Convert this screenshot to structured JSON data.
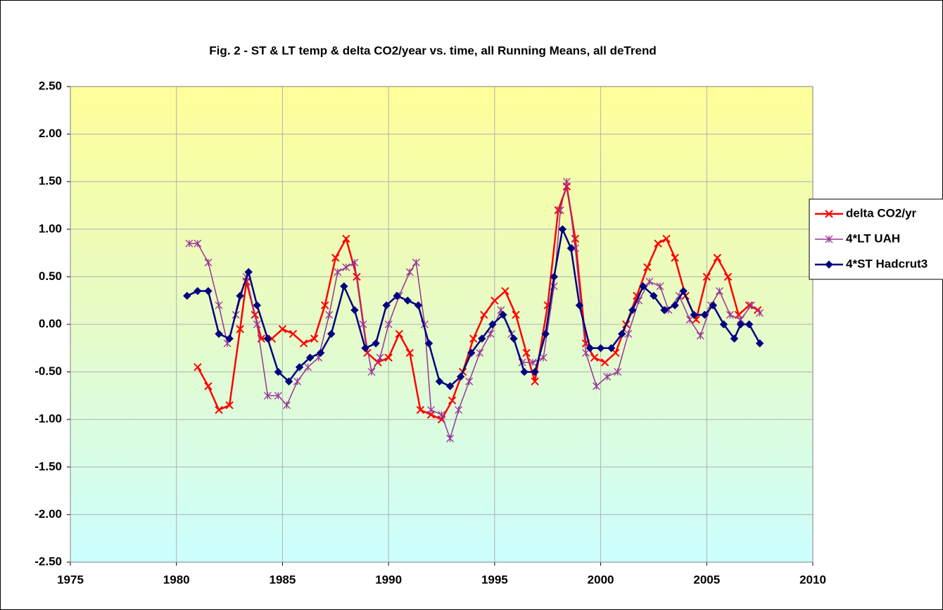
{
  "chart_data": {
    "type": "line",
    "title": "Fig. 2 - ST & LT temp & delta CO2/year vs. time, all Running Means, all deTrend",
    "xlim": [
      1975,
      2010
    ],
    "xticks": [
      1975,
      1980,
      1985,
      1990,
      1995,
      2000,
      2005,
      2010
    ],
    "ylim": [
      -2.5,
      2.5
    ],
    "yticks": [
      {
        "value": -2.5,
        "label": "-2.50"
      },
      {
        "value": -2,
        "label": "-2.00"
      },
      {
        "value": -1.5,
        "label": "-1.50"
      },
      {
        "value": -1,
        "label": "-1.00"
      },
      {
        "value": -0.5,
        "label": "-0.50"
      },
      {
        "value": 0,
        "label": "0.00"
      },
      {
        "value": 0.5,
        "label": "0.50"
      },
      {
        "value": 1,
        "label": "1.00"
      },
      {
        "value": 1.5,
        "label": "1.50"
      },
      {
        "value": 2,
        "label": "2.00"
      },
      {
        "value": 2.5,
        "label": "2.50"
      }
    ],
    "grid": true,
    "legend": "right",
    "series": [
      {
        "name": "delta CO2/yr",
        "color": "#ff0000",
        "marker": "x",
        "x": [
          1981.0,
          1981.5,
          1982.0,
          1982.5,
          1983.0,
          1983.3,
          1983.7,
          1984.0,
          1984.5,
          1985.0,
          1985.5,
          1986.0,
          1986.5,
          1987.0,
          1987.5,
          1988.0,
          1988.5,
          1989.0,
          1989.5,
          1990.0,
          1990.5,
          1991.0,
          1991.5,
          1992.0,
          1992.5,
          1993.0,
          1993.5,
          1994.0,
          1994.5,
          1995.0,
          1995.5,
          1996.0,
          1996.5,
          1996.9,
          1997.5,
          1998.0,
          1998.4,
          1998.8,
          1999.3,
          1999.7,
          2000.2,
          2000.7,
          2001.2,
          2001.7,
          2002.2,
          2002.7,
          2003.1,
          2003.5,
          2004.0,
          2004.5,
          2005.0,
          2005.5,
          2006.0,
          2006.5,
          2007.0,
          2007.4
        ],
        "values": [
          -0.45,
          -0.65,
          -0.9,
          -0.85,
          -0.05,
          0.45,
          0.1,
          -0.15,
          -0.15,
          -0.05,
          -0.1,
          -0.2,
          -0.15,
          0.2,
          0.7,
          0.9,
          0.5,
          -0.3,
          -0.4,
          -0.35,
          -0.1,
          -0.3,
          -0.9,
          -0.95,
          -1.0,
          -0.8,
          -0.5,
          -0.15,
          0.1,
          0.25,
          0.35,
          0.1,
          -0.3,
          -0.6,
          0.2,
          1.2,
          1.45,
          0.9,
          -0.2,
          -0.35,
          -0.4,
          -0.3,
          0.0,
          0.3,
          0.6,
          0.85,
          0.9,
          0.7,
          0.3,
          0.05,
          0.5,
          0.7,
          0.5,
          0.1,
          0.2,
          0.15
        ]
      },
      {
        "name": "4*LT UAH",
        "color": "#993399",
        "marker": "star",
        "x": [
          1980.6,
          1981.0,
          1981.5,
          1982.0,
          1982.4,
          1982.8,
          1983.3,
          1983.8,
          1984.3,
          1984.8,
          1985.2,
          1985.7,
          1986.2,
          1986.7,
          1987.2,
          1987.6,
          1988.0,
          1988.4,
          1988.8,
          1989.2,
          1989.6,
          1990.0,
          1990.5,
          1991.0,
          1991.3,
          1991.7,
          1992.0,
          1992.5,
          1992.9,
          1993.3,
          1993.8,
          1994.3,
          1994.8,
          1995.3,
          1995.8,
          1996.3,
          1996.8,
          1997.3,
          1997.8,
          1998.1,
          1998.4,
          1998.8,
          1999.3,
          1999.8,
          2000.3,
          2000.8,
          2001.3,
          2001.8,
          2002.3,
          2002.8,
          2003.2,
          2003.7,
          2004.2,
          2004.7,
          2005.2,
          2005.6,
          2006.1,
          2006.6,
          2007.1,
          2007.5
        ],
        "values": [
          0.85,
          0.85,
          0.65,
          0.2,
          -0.2,
          0.1,
          0.5,
          0.0,
          -0.75,
          -0.75,
          -0.85,
          -0.6,
          -0.45,
          -0.35,
          0.1,
          0.55,
          0.6,
          0.65,
          0.0,
          -0.5,
          -0.35,
          0.0,
          0.3,
          0.55,
          0.65,
          0.0,
          -0.9,
          -0.95,
          -1.2,
          -0.9,
          -0.6,
          -0.3,
          -0.1,
          0.15,
          -0.1,
          -0.4,
          -0.4,
          -0.35,
          0.4,
          1.2,
          1.5,
          0.8,
          -0.3,
          -0.65,
          -0.55,
          -0.5,
          -0.1,
          0.25,
          0.45,
          0.4,
          0.15,
          0.3,
          0.05,
          -0.12,
          0.2,
          0.35,
          0.1,
          0.05,
          0.2,
          0.12
        ]
      },
      {
        "name": "4*ST Hadcrut3",
        "color": "#000080",
        "marker": "diamond",
        "x": [
          1980.5,
          1981.0,
          1981.5,
          1982.0,
          1982.5,
          1983.0,
          1983.4,
          1983.8,
          1984.3,
          1984.8,
          1985.3,
          1985.8,
          1986.3,
          1986.8,
          1987.3,
          1987.9,
          1988.4,
          1988.9,
          1989.4,
          1989.9,
          1990.4,
          1990.9,
          1991.4,
          1991.9,
          1992.4,
          1992.9,
          1993.4,
          1993.9,
          1994.4,
          1994.9,
          1995.4,
          1995.9,
          1996.4,
          1996.9,
          1997.4,
          1997.8,
          1998.2,
          1998.6,
          1999.0,
          1999.5,
          2000.0,
          2000.5,
          2001.0,
          2001.5,
          2002.0,
          2002.5,
          2003.0,
          2003.5,
          2003.9,
          2004.4,
          2004.9,
          2005.3,
          2005.8,
          2006.3,
          2006.6,
          2007.0,
          2007.5
        ],
        "values": [
          0.3,
          0.35,
          0.35,
          -0.1,
          -0.15,
          0.3,
          0.55,
          0.2,
          -0.15,
          -0.5,
          -0.6,
          -0.45,
          -0.35,
          -0.3,
          -0.1,
          0.4,
          0.15,
          -0.25,
          -0.2,
          0.2,
          0.3,
          0.25,
          0.2,
          -0.2,
          -0.6,
          -0.65,
          -0.55,
          -0.3,
          -0.15,
          0.0,
          0.1,
          -0.15,
          -0.5,
          -0.5,
          -0.1,
          0.5,
          1.0,
          0.8,
          0.2,
          -0.25,
          -0.25,
          -0.25,
          -0.1,
          0.15,
          0.4,
          0.3,
          0.15,
          0.2,
          0.35,
          0.1,
          0.1,
          0.2,
          0.0,
          -0.15,
          0.0,
          0.0,
          -0.2
        ]
      }
    ]
  }
}
